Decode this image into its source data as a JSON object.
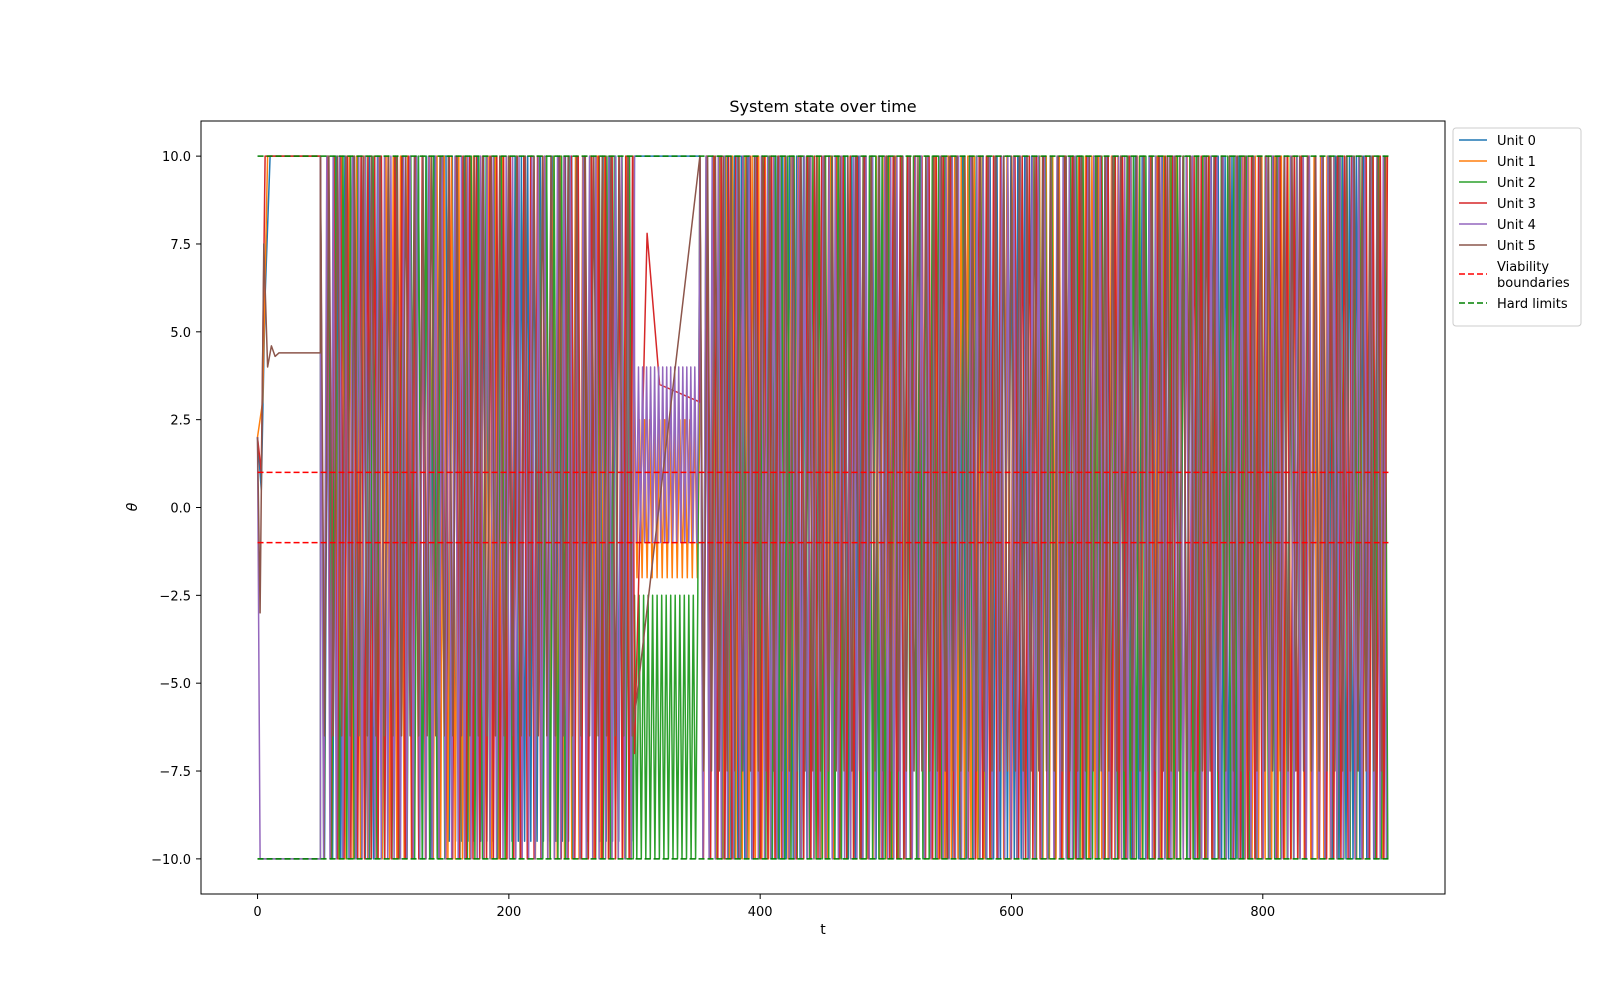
{
  "chart_data": {
    "type": "line",
    "title": "System state over time",
    "xlabel": "t",
    "ylabel": "θ",
    "xlim": [
      -45,
      945
    ],
    "ylim": [
      -11,
      11
    ],
    "xticks": [
      0,
      200,
      400,
      600,
      800
    ],
    "yticks": [
      -10.0,
      -7.5,
      -5.0,
      -2.5,
      0.0,
      2.5,
      5.0,
      7.5,
      10.0
    ],
    "ytick_labels": [
      "−10.0",
      "−7.5",
      "−5.0",
      "−2.5",
      "0.0",
      "2.5",
      "5.0",
      "7.5",
      "10.0"
    ],
    "grid": false,
    "legend_position": "outside top-right",
    "series": [
      {
        "name": "Unit 0",
        "color": "#1f77b4",
        "style": "solid",
        "segments": [
          {
            "x": [
              0,
              3,
              6,
              10,
              50
            ],
            "y": [
              2.0,
              0.5,
              6.0,
              10.0,
              10.0
            ]
          },
          {
            "x": [
              50,
              150
            ],
            "kind": "osc",
            "period": 6.5,
            "lo": -10,
            "hi": 10,
            "phase": 0.1
          },
          {
            "x": [
              150,
              300
            ],
            "kind": "osc",
            "period": 5.0,
            "lo": -9.5,
            "hi": 10,
            "phase": 0.4
          },
          {
            "x": [
              300,
              352
            ],
            "y": [
              10.0,
              10.0
            ]
          },
          {
            "x": [
              352,
              900
            ],
            "kind": "osc",
            "period": 5.5,
            "lo": -10,
            "hi": 10,
            "phase": 0.2
          }
        ]
      },
      {
        "name": "Unit 1",
        "color": "#ff7f0e",
        "style": "solid",
        "segments": [
          {
            "x": [
              0,
              4,
              8,
              50
            ],
            "y": [
              2.0,
              3.0,
              10.0,
              10.0
            ]
          },
          {
            "x": [
              50,
              300
            ],
            "kind": "osc",
            "period": 5.8,
            "lo": -10,
            "hi": 10,
            "phase": 0.3
          },
          {
            "x": [
              300,
              352
            ],
            "kind": "osc",
            "period": 4.0,
            "lo": -2.0,
            "hi": 2.5,
            "phase": 0.0
          },
          {
            "x": [
              352,
              900
            ],
            "kind": "osc",
            "period": 5.2,
            "lo": -10,
            "hi": 10,
            "phase": 0.5
          }
        ]
      },
      {
        "name": "Unit 2",
        "color": "#2ca02c",
        "style": "solid",
        "segments": [
          {
            "x": [
              0,
              50
            ],
            "y": [
              -10.0,
              -10.0
            ]
          },
          {
            "x": [
              50,
              300
            ],
            "kind": "osc",
            "period": 6.0,
            "lo": -10,
            "hi": 10,
            "phase": 0.6
          },
          {
            "x": [
              300,
              352
            ],
            "kind": "osc",
            "period": 3.6,
            "lo": -10,
            "hi": -2.5,
            "phase": 0.2
          },
          {
            "x": [
              352,
              900
            ],
            "kind": "osc",
            "period": 5.0,
            "lo": -10,
            "hi": 10,
            "phase": 0.7
          }
        ]
      },
      {
        "name": "Unit 3",
        "color": "#d62728",
        "style": "solid",
        "segments": [
          {
            "x": [
              0,
              3,
              6,
              9,
              50
            ],
            "y": [
              2.0,
              1.0,
              10.0,
              10.0,
              10.0
            ]
          },
          {
            "x": [
              50,
              300
            ],
            "kind": "osc",
            "period": 5.4,
            "lo": -10,
            "hi": 10,
            "phase": 0.8
          },
          {
            "x": [
              300,
              310,
              320,
              352
            ],
            "y": [
              -7.0,
              7.8,
              3.5,
              3.0
            ]
          },
          {
            "x": [
              352,
              900
            ],
            "kind": "osc",
            "period": 5.7,
            "lo": -10,
            "hi": 10,
            "phase": 0.9
          }
        ]
      },
      {
        "name": "Unit 4",
        "color": "#9467bd",
        "style": "solid",
        "segments": [
          {
            "x": [
              0,
              2,
              50
            ],
            "y": [
              2.0,
              -10.0,
              -10.0
            ]
          },
          {
            "x": [
              50,
              300
            ],
            "kind": "osc",
            "period": 5.1,
            "lo": -10,
            "hi": 10,
            "phase": 0.15
          },
          {
            "x": [
              300,
              352
            ],
            "kind": "osc",
            "period": 3.2,
            "lo": -1.0,
            "hi": 4.0,
            "phase": 0.5
          },
          {
            "x": [
              352,
              900
            ],
            "kind": "osc",
            "period": 4.9,
            "lo": -10,
            "hi": 10,
            "phase": 0.35
          }
        ]
      },
      {
        "name": "Unit 5",
        "color": "#8c564b",
        "style": "solid",
        "segments": [
          {
            "x": [
              0,
              2,
              5,
              8,
              11,
              14,
              17,
              20,
              50
            ],
            "y": [
              2.0,
              -3.0,
              7.5,
              4.0,
              4.6,
              4.3,
              4.4,
              4.4,
              4.4
            ]
          },
          {
            "x": [
              50,
              300
            ],
            "kind": "osc",
            "period": 6.8,
            "lo": -6.5,
            "hi": 10,
            "phase": 0.25
          },
          {
            "x": [
              352,
              900
            ],
            "kind": "osc",
            "period": 6.2,
            "lo": -7.5,
            "hi": 10,
            "phase": 0.45
          }
        ]
      },
      {
        "name": "Viability\nboundaries",
        "color": "#ff0000",
        "style": "dashed",
        "lines": [
          {
            "x": [
              0,
              900
            ],
            "y": [
              1.0,
              1.0
            ]
          },
          {
            "x": [
              0,
              900
            ],
            "y": [
              -1.0,
              -1.0
            ]
          }
        ]
      },
      {
        "name": "Hard limits",
        "color": "#008000",
        "style": "dashed",
        "lines": [
          {
            "x": [
              0,
              900
            ],
            "y": [
              10.0,
              10.0
            ]
          },
          {
            "x": [
              0,
              900
            ],
            "y": [
              -10.0,
              -10.0
            ]
          }
        ]
      }
    ]
  }
}
